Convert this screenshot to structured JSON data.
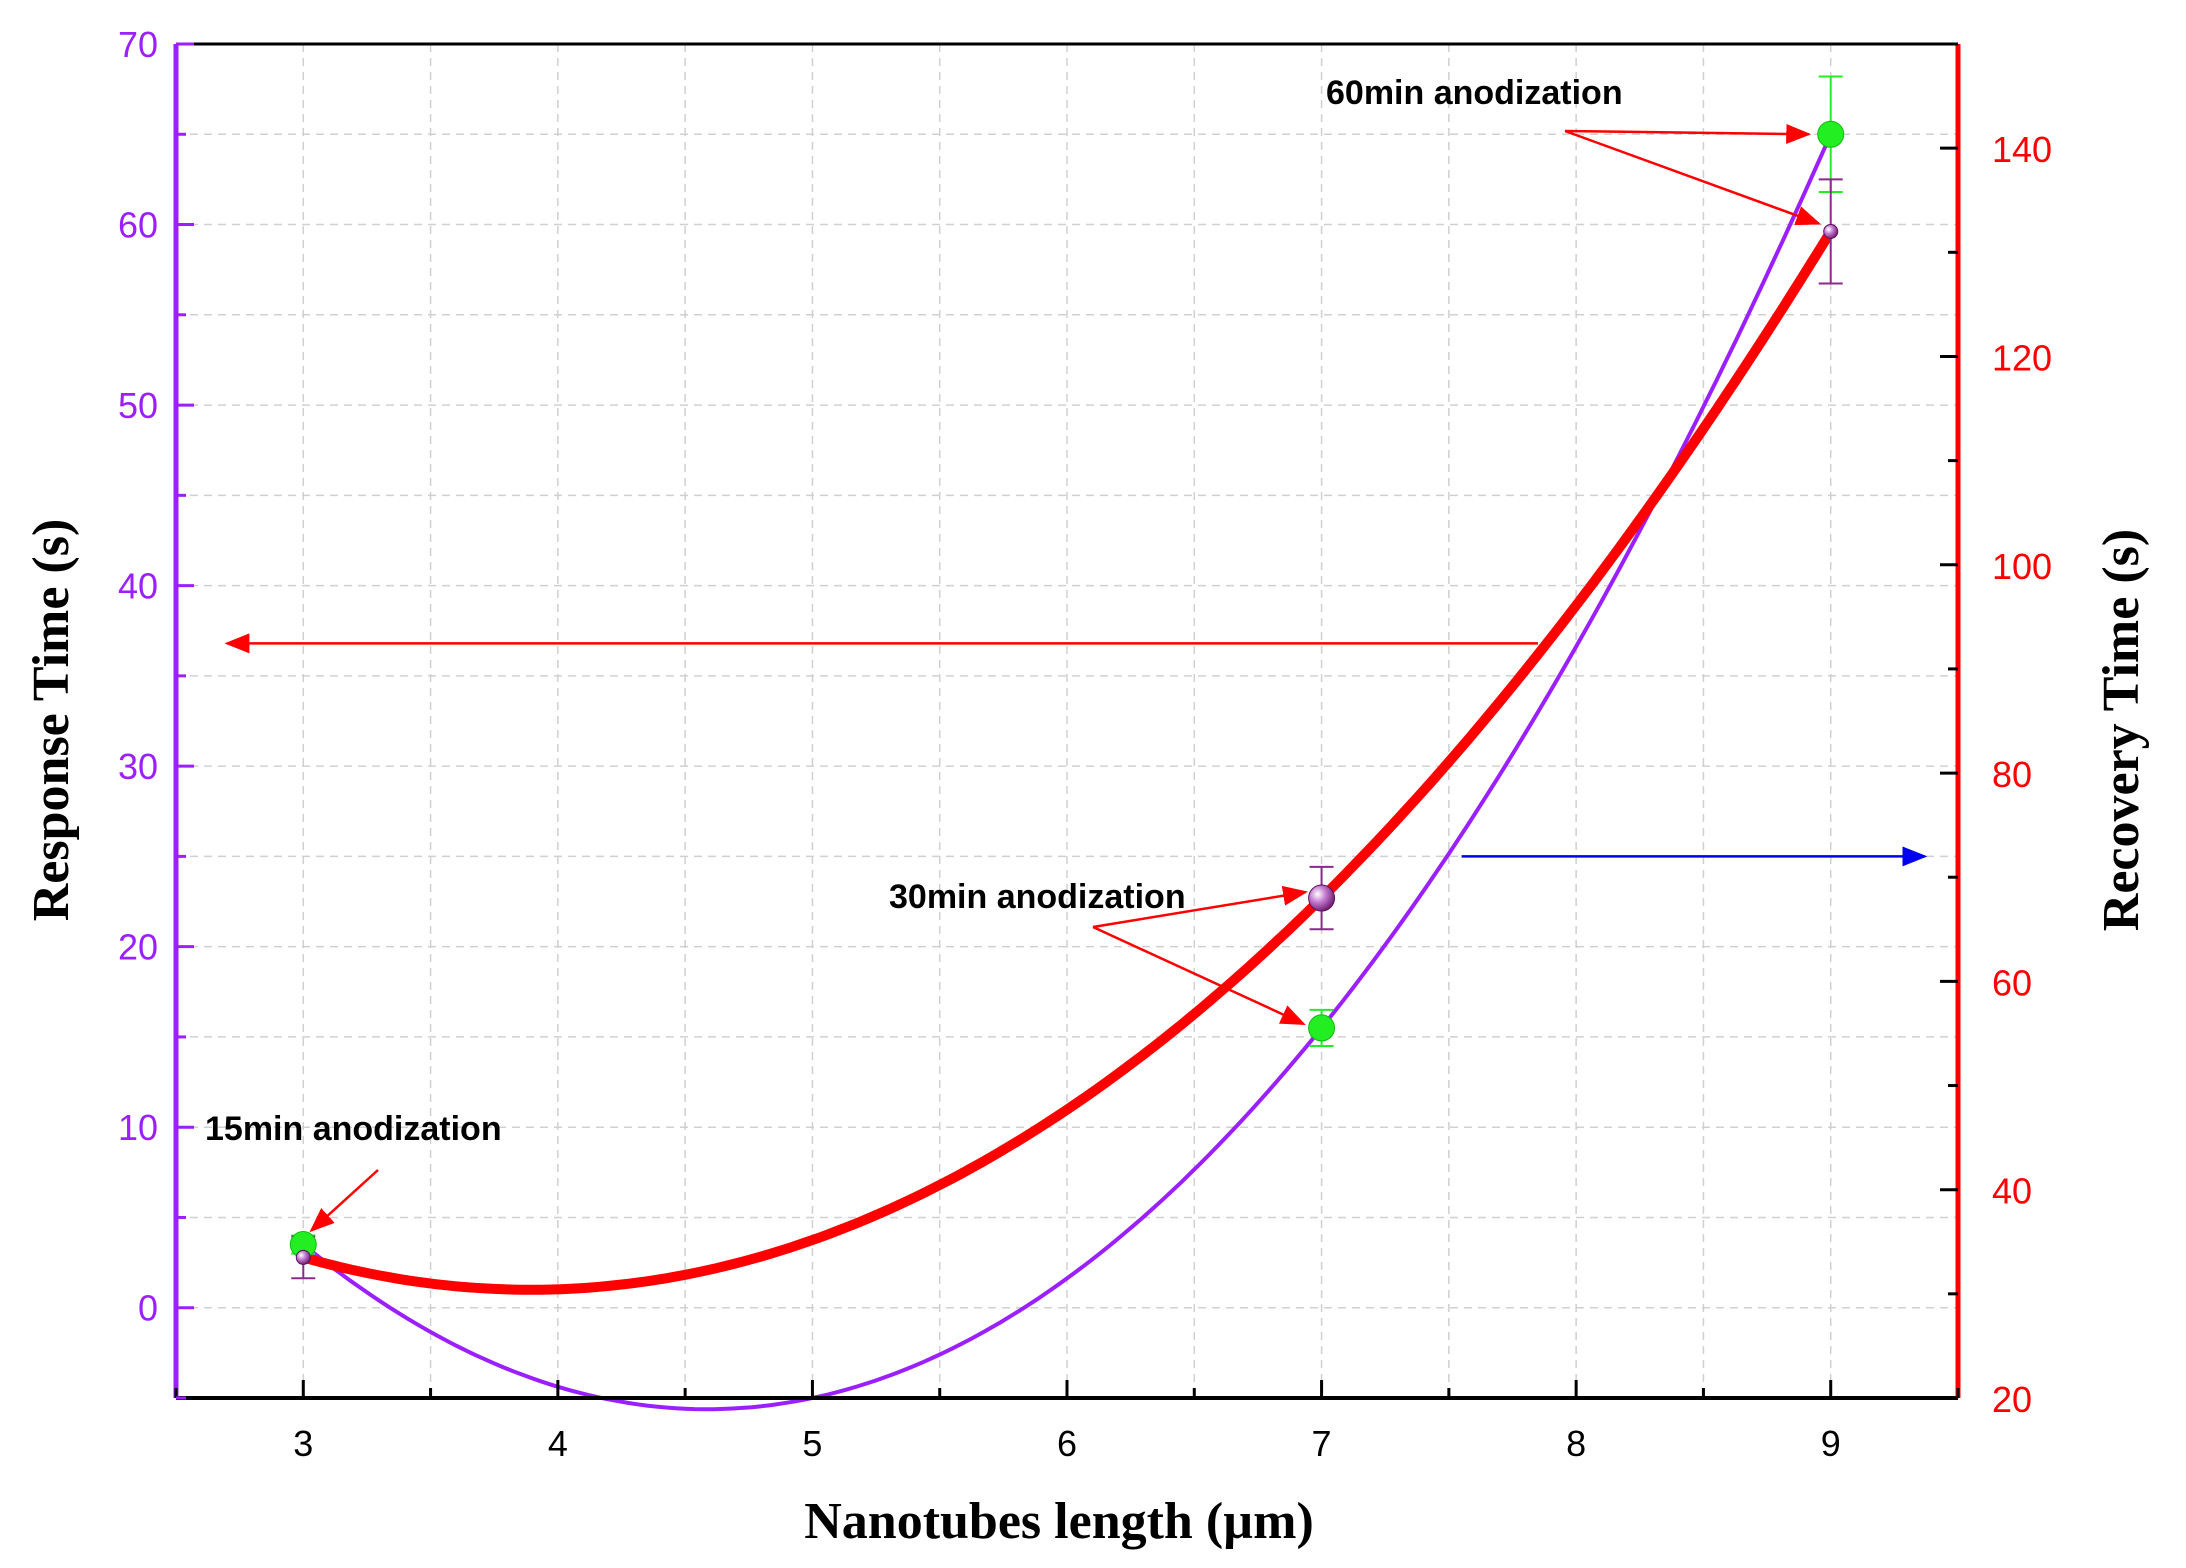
{
  "chart_data": {
    "type": "line",
    "xlabel": "Nanotubes length (µm)",
    "ylabel": "Response Time (s)",
    "ylabel_right": "Recovery Time (s)",
    "xlim": [
      2.5,
      9.5
    ],
    "ylim": [
      -5,
      70
    ],
    "ylim_right": [
      20,
      150
    ],
    "x_ticks": [
      3,
      4,
      5,
      6,
      7,
      8,
      9
    ],
    "y_ticks": [
      0,
      10,
      20,
      30,
      40,
      50,
      60,
      70
    ],
    "y_right_ticks": [
      20,
      40,
      60,
      80,
      100,
      120,
      140
    ],
    "grid": true,
    "colors": {
      "left_axis": "#9b1fff",
      "right_axis": "#ff0000",
      "response_line": "#9b1fff",
      "recovery_line": "#ff0000",
      "response_marker": "#22ee22",
      "recovery_marker": "#8a2a8a",
      "arrow_left": "#ff0000",
      "arrow_right": "#0000ee"
    },
    "series": [
      {
        "axis": "left",
        "x": [
          3,
          7,
          9
        ],
        "values": [
          3.5,
          15.5,
          65
        ],
        "errors": [
          0.5,
          1.0,
          3.2
        ]
      },
      {
        "axis": "right",
        "x": [
          3,
          7,
          9
        ],
        "values": [
          33.5,
          68,
          132
        ],
        "errors": [
          2,
          3,
          5
        ]
      }
    ],
    "annotations": [
      {
        "text": "15min anodization"
      },
      {
        "text": "30min anodization"
      },
      {
        "text": "60min anodization"
      }
    ]
  }
}
